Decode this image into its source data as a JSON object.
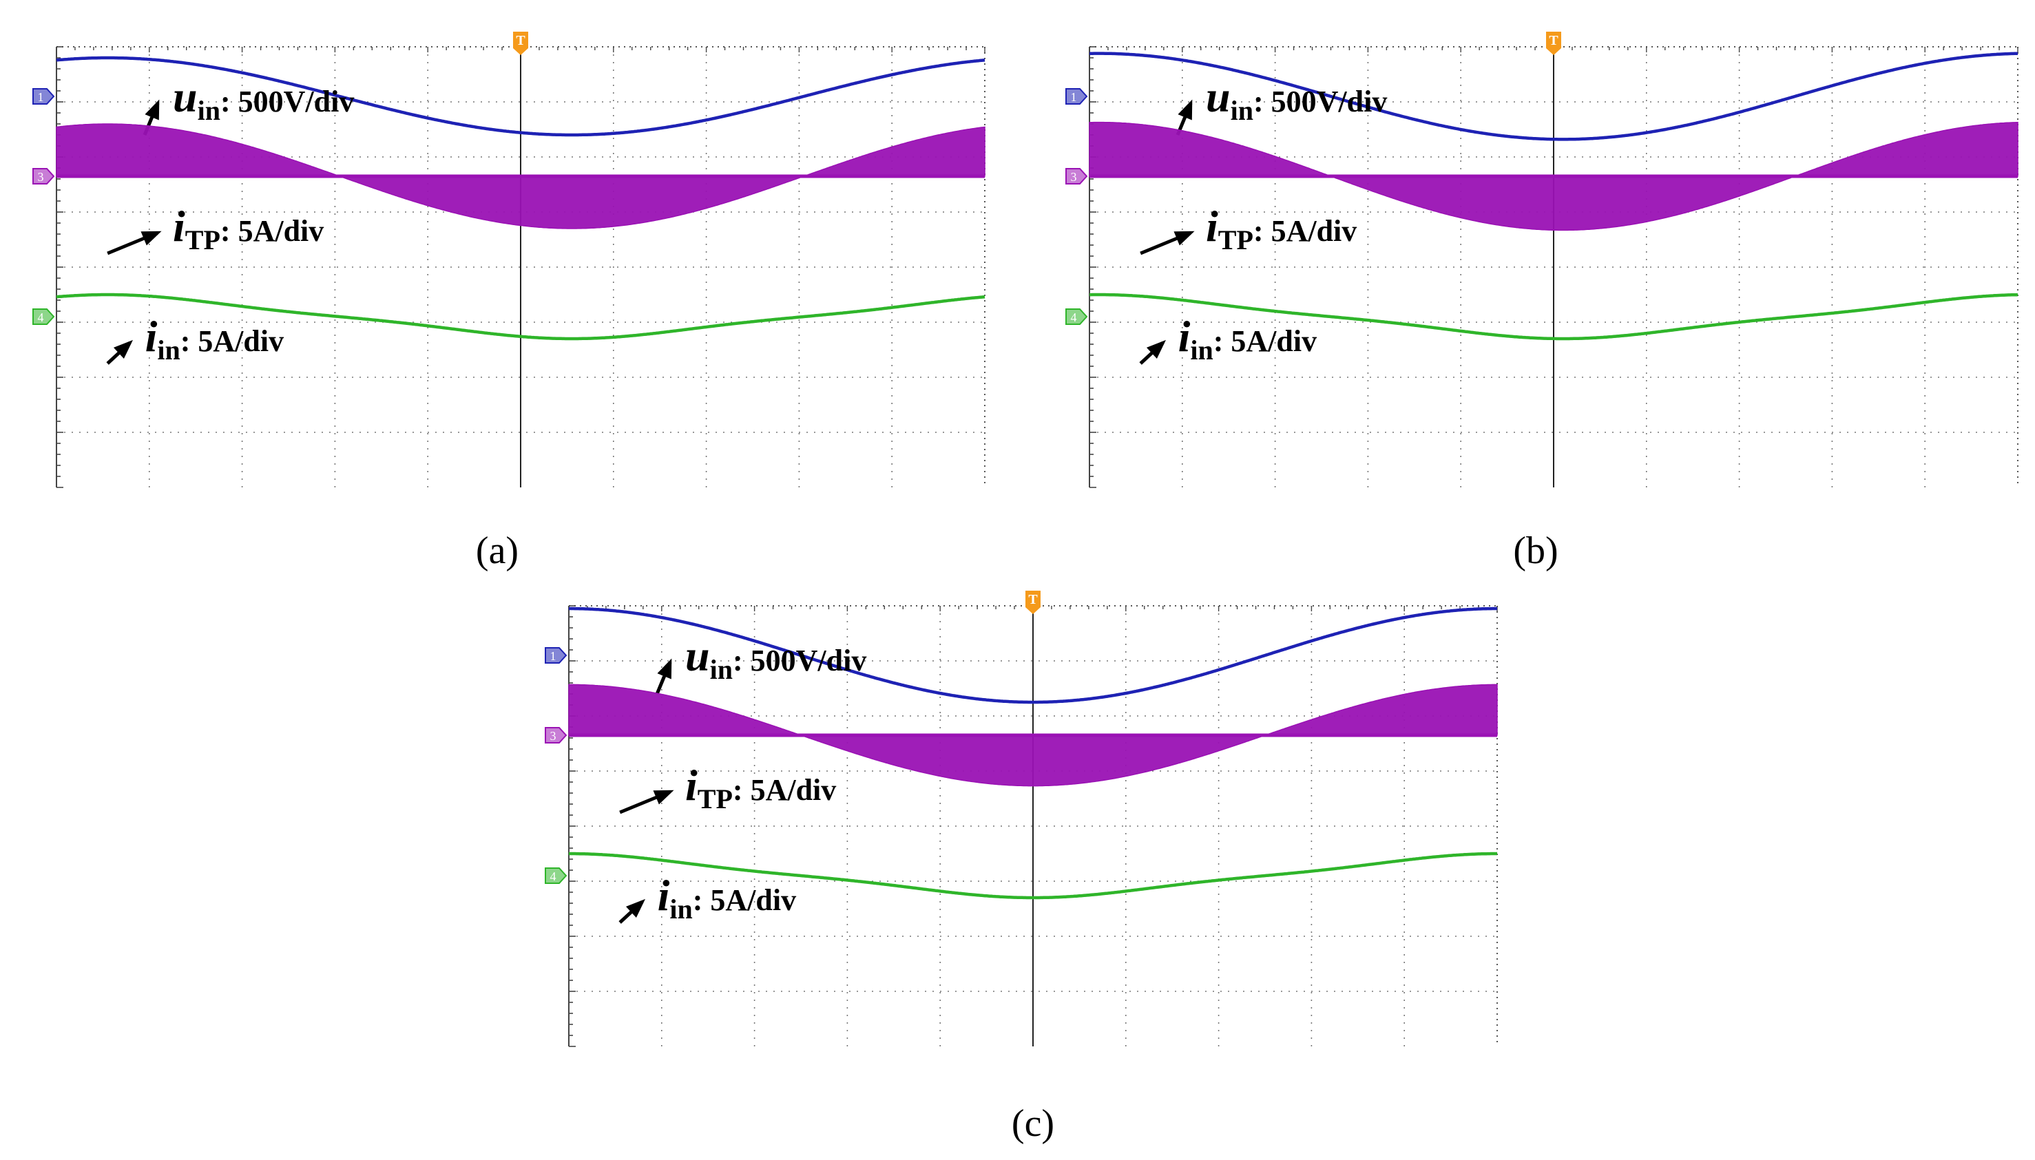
{
  "chart_data": [
    {
      "type": "line",
      "panel_label": "(a)",
      "x_divisions": 10,
      "y_divisions": 8,
      "trigger_marker": "T",
      "channel_markers": [
        "1",
        "3",
        "4"
      ],
      "series": [
        {
          "name": "u_in",
          "symbol": "u",
          "subscript": "in",
          "scale": ": 500V/div",
          "color": "#1e22b4",
          "kind": "sine",
          "offset_div": 3.1,
          "amplitude_div": 0.7,
          "period_div": 10.0,
          "phase_div": 0.55
        },
        {
          "name": "i_TP",
          "symbol": "i",
          "subscript": "TP",
          "scale": ": 5A/div",
          "color": "#9a12b4",
          "kind": "envelope",
          "offset_div": 1.65,
          "amplitude_div": 0.95,
          "period_div": 10.0,
          "phase_div": 0.55
        },
        {
          "name": "i_in",
          "symbol": "i",
          "subscript": "in",
          "scale": ": 5A/div",
          "color": "#2fb52a",
          "kind": "distorted",
          "offset_div": -0.9,
          "amplitude_div": 0.4,
          "period_div": 10.0,
          "phase_div": 0.55
        }
      ]
    },
    {
      "type": "line",
      "panel_label": "(b)",
      "x_divisions": 10,
      "y_divisions": 8,
      "trigger_marker": "T",
      "channel_markers": [
        "1",
        "3",
        "4"
      ],
      "series": [
        {
          "name": "u_in",
          "symbol": "u",
          "subscript": "in",
          "scale": ": 500V/div",
          "color": "#1e22b4",
          "kind": "sine",
          "offset_div": 3.1,
          "amplitude_div": 0.78,
          "period_div": 10.0,
          "phase_div": 0.1
        },
        {
          "name": "i_TP",
          "symbol": "i",
          "subscript": "TP",
          "scale": ": 5A/div",
          "color": "#9a12b4",
          "kind": "envelope",
          "offset_div": 1.65,
          "amplitude_div": 0.98,
          "period_div": 10.0,
          "phase_div": 0.1
        },
        {
          "name": "i_in",
          "symbol": "i",
          "subscript": "in",
          "scale": ": 5A/div",
          "color": "#2fb52a",
          "kind": "distorted",
          "offset_div": -0.9,
          "amplitude_div": 0.4,
          "period_div": 10.0,
          "phase_div": 0.1
        }
      ]
    },
    {
      "type": "line",
      "panel_label": "(c)",
      "x_divisions": 10,
      "y_divisions": 8,
      "trigger_marker": "T",
      "channel_markers": [
        "1",
        "3",
        "4"
      ],
      "series": [
        {
          "name": "u_in",
          "symbol": "u",
          "subscript": "in",
          "scale": ": 500V/div",
          "color": "#1e22b4",
          "kind": "sine",
          "offset_div": 3.1,
          "amplitude_div": 0.85,
          "period_div": 10.0,
          "phase_div": 0.0
        },
        {
          "name": "i_TP",
          "symbol": "i",
          "subscript": "TP",
          "scale": ": 5A/div",
          "color": "#9a12b4",
          "kind": "envelope",
          "offset_div": 1.65,
          "amplitude_div": 0.92,
          "period_div": 10.0,
          "phase_div": 0.0
        },
        {
          "name": "i_in",
          "symbol": "i",
          "subscript": "in",
          "scale": ": 5A/div",
          "color": "#2fb52a",
          "kind": "distorted",
          "offset_div": -0.9,
          "amplitude_div": 0.4,
          "period_div": 10.0,
          "phase_div": 0.0
        }
      ]
    }
  ]
}
